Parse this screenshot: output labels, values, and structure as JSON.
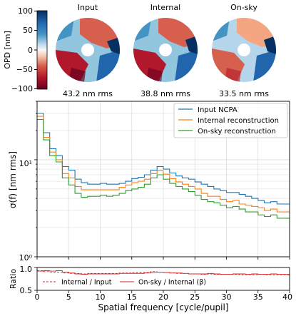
{
  "opd_maps": {
    "colorbar": {
      "label": "OPD [nm]",
      "ticks": [
        "100",
        "50",
        "0",
        "−50",
        "−100"
      ],
      "range": [
        -100,
        100
      ],
      "colormap": "RdBu"
    },
    "panels": [
      {
        "title": "Input",
        "rms": "43.2 nm rms"
      },
      {
        "title": "Internal",
        "rms": "38.8 nm rms"
      },
      {
        "title": "On-sky",
        "rms": "33.5 nm rms"
      }
    ]
  },
  "chart_data": [
    {
      "type": "line",
      "step": true,
      "ylabel": "σ(f) [nm rms]",
      "xlabel": "",
      "yscale": "log",
      "ylim": [
        1,
        40
      ],
      "xlim": [
        0,
        40
      ],
      "y_tick_labels": [
        "10⁰",
        "10¹"
      ],
      "legend_position": "upper-right",
      "grid": true,
      "x": [
        0,
        1,
        2,
        3,
        4,
        5,
        6,
        7,
        8,
        9,
        10,
        11,
        12,
        13,
        14,
        15,
        16,
        17,
        18,
        19,
        20,
        21,
        22,
        23,
        24,
        25,
        26,
        27,
        28,
        29,
        30,
        31,
        32,
        33,
        34,
        35,
        36,
        37,
        38,
        39
      ],
      "series": [
        {
          "name": "Input NCPA",
          "color": "#1f77b4",
          "values": [
            30,
            19,
            13,
            11,
            8.5,
            7.8,
            6.3,
            5.8,
            5.6,
            5.6,
            5.7,
            5.6,
            5.6,
            5.7,
            6.0,
            6.4,
            6.6,
            7.0,
            7.8,
            8.5,
            8.0,
            7.3,
            6.8,
            6.5,
            6.3,
            5.9,
            5.6,
            5.3,
            5.0,
            4.8,
            4.6,
            4.6,
            4.4,
            4.2,
            4.0,
            3.8,
            3.6,
            3.7,
            3.5,
            3.5
          ]
        },
        {
          "name": "Internal reconstruction",
          "color": "#ff7f0e",
          "values": [
            28,
            17,
            12,
            10,
            7.2,
            6.5,
            5.3,
            4.9,
            4.9,
            4.9,
            4.9,
            4.9,
            4.9,
            5.2,
            5.5,
            5.8,
            6.0,
            6.3,
            7.2,
            7.7,
            7.1,
            6.4,
            5.9,
            5.6,
            5.3,
            5.0,
            4.5,
            4.2,
            4.2,
            3.9,
            3.7,
            3.8,
            3.5,
            3.4,
            3.3,
            3.2,
            3.0,
            3.1,
            2.9,
            2.9
          ]
        },
        {
          "name": "On-sky reconstruction",
          "color": "#2ca02c",
          "values": [
            26,
            16,
            11,
            9.5,
            6.5,
            5.5,
            4.5,
            4.1,
            4.2,
            4.2,
            4.3,
            4.2,
            4.3,
            4.5,
            4.8,
            5.0,
            5.2,
            5.6,
            6.5,
            7.0,
            6.3,
            5.7,
            5.3,
            5.0,
            4.7,
            4.3,
            3.9,
            3.7,
            3.6,
            3.4,
            3.2,
            3.3,
            3.1,
            2.9,
            2.9,
            2.7,
            2.6,
            2.7,
            2.5,
            2.5
          ]
        }
      ]
    },
    {
      "type": "line",
      "step": true,
      "ylabel": "Ratio",
      "xlabel": "Spatial frequency [cycle/pupil]",
      "ylim": [
        0.5,
        1.0
      ],
      "xlim": [
        0,
        40
      ],
      "y_tick_labels": [
        "1.0",
        "0.5"
      ],
      "x_tick_labels": [
        "0",
        "5",
        "10",
        "15",
        "20",
        "25",
        "30",
        "35",
        "40"
      ],
      "legend_position": "lower-center",
      "x": [
        0,
        1,
        2,
        3,
        4,
        5,
        6,
        7,
        8,
        9,
        10,
        11,
        12,
        13,
        14,
        15,
        16,
        17,
        18,
        19,
        20,
        21,
        22,
        23,
        24,
        25,
        26,
        27,
        28,
        29,
        30,
        31,
        32,
        33,
        34,
        35,
        36,
        37,
        38,
        39
      ],
      "series": [
        {
          "name": "Internal / Input",
          "color": "#d62728",
          "dash": true,
          "values": [
            0.93,
            0.91,
            0.9,
            0.9,
            0.88,
            0.87,
            0.87,
            0.86,
            0.87,
            0.87,
            0.87,
            0.87,
            0.87,
            0.88,
            0.88,
            0.89,
            0.89,
            0.89,
            0.91,
            0.9,
            0.89,
            0.88,
            0.87,
            0.87,
            0.86,
            0.86,
            0.85,
            0.86,
            0.85,
            0.85,
            0.85,
            0.85,
            0.84,
            0.84,
            0.84,
            0.85,
            0.84,
            0.84,
            0.84,
            0.84
          ]
        },
        {
          "name": "On-sky / Internal (β)",
          "color": "#d62728",
          "dash": false,
          "values": [
            0.92,
            0.93,
            0.92,
            0.93,
            0.9,
            0.88,
            0.86,
            0.85,
            0.86,
            0.86,
            0.86,
            0.86,
            0.86,
            0.87,
            0.87,
            0.87,
            0.87,
            0.88,
            0.9,
            0.9,
            0.89,
            0.88,
            0.88,
            0.87,
            0.86,
            0.86,
            0.86,
            0.87,
            0.86,
            0.85,
            0.85,
            0.86,
            0.86,
            0.85,
            0.86,
            0.85,
            0.85,
            0.86,
            0.85,
            0.85
          ]
        }
      ]
    }
  ],
  "colors": {
    "axis": "#000000",
    "grid": "#d9d9d9",
    "text": "#000000"
  }
}
